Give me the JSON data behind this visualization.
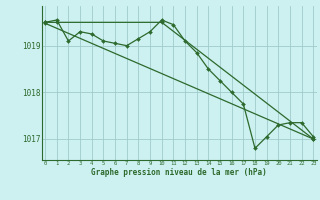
{
  "series": [
    {
      "x": [
        0,
        1,
        2,
        3,
        4,
        5,
        6,
        7,
        8,
        9,
        10,
        11,
        12,
        13,
        14,
        15,
        16,
        17,
        18,
        19,
        20,
        21,
        22,
        23
      ],
      "y": [
        1019.5,
        1019.55,
        1019.1,
        1019.3,
        1019.25,
        1019.1,
        1019.05,
        1019.0,
        1019.15,
        1019.3,
        1019.55,
        1019.45,
        1019.1,
        1018.85,
        1018.5,
        1018.25,
        1018.0,
        1017.75,
        1016.8,
        1017.05,
        1017.3,
        1017.35,
        1017.35,
        1017.05
      ]
    },
    {
      "x": [
        0,
        1,
        10,
        23
      ],
      "y": [
        1019.5,
        1019.5,
        1019.5,
        1017.0
      ]
    },
    {
      "x": [
        0,
        23
      ],
      "y": [
        1019.48,
        1017.0
      ]
    }
  ],
  "xlim": [
    -0.3,
    23.3
  ],
  "ylim": [
    1016.55,
    1019.85
  ],
  "yticks": [
    1017,
    1018,
    1019
  ],
  "xticks": [
    0,
    1,
    2,
    3,
    4,
    5,
    6,
    7,
    8,
    9,
    10,
    11,
    12,
    13,
    14,
    15,
    16,
    17,
    18,
    19,
    20,
    21,
    22,
    23
  ],
  "xlabel": "Graphe pression niveau de la mer (hPa)",
  "background_color": "#cdf0f0",
  "grid_color": "#a0cccc",
  "line_color": "#2d6a2d",
  "text_color": "#2d6a2d",
  "marker": "D",
  "markersize": 2.0,
  "linewidth": 0.9
}
